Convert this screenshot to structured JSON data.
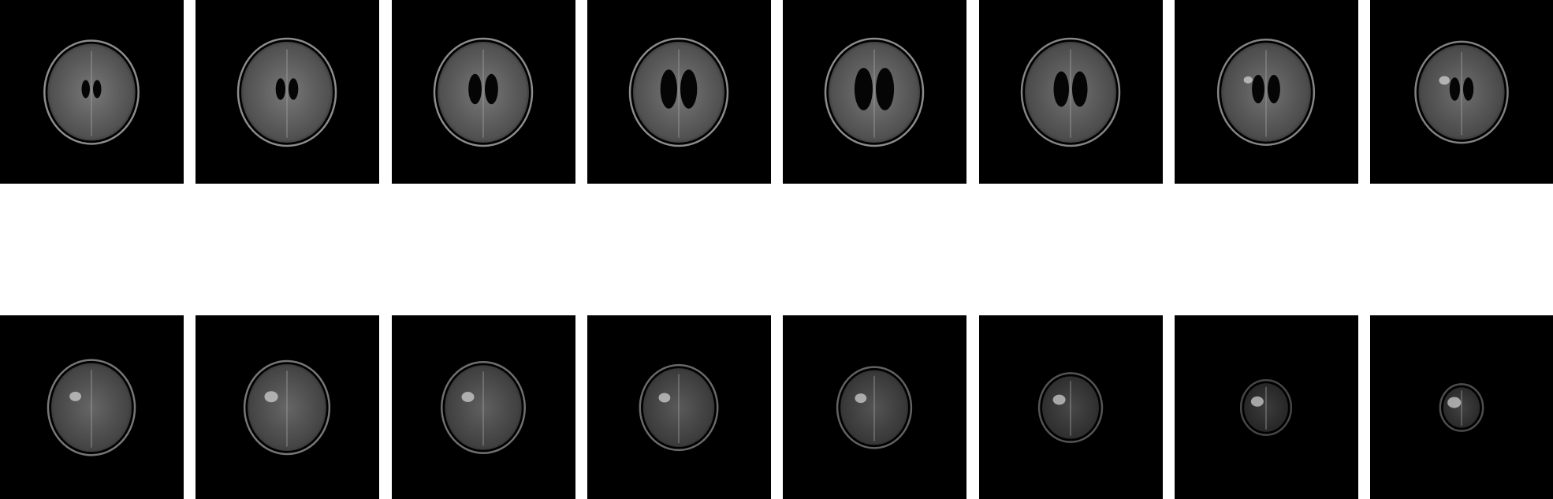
{
  "slices": [
    {
      "scale": 0.96,
      "vent": 0.25,
      "lesion": 0.0,
      "dim": 1.0
    },
    {
      "scale": 1.0,
      "vent": 0.35,
      "lesion": 0.0,
      "dim": 1.0
    },
    {
      "scale": 1.0,
      "vent": 0.6,
      "lesion": 0.0,
      "dim": 1.0
    },
    {
      "scale": 1.0,
      "vent": 0.85,
      "lesion": 0.0,
      "dim": 1.0
    },
    {
      "scale": 1.0,
      "vent": 0.95,
      "lesion": 0.0,
      "dim": 1.0
    },
    {
      "scale": 1.0,
      "vent": 0.75,
      "lesion": 0.0,
      "dim": 0.95
    },
    {
      "scale": 0.98,
      "vent": 0.55,
      "lesion": 0.1,
      "dim": 0.95
    },
    {
      "scale": 0.94,
      "vent": 0.4,
      "lesion": 0.3,
      "dim": 0.92
    },
    {
      "scale": 0.88,
      "vent": 0.0,
      "lesion": 0.4,
      "dim": 0.85
    },
    {
      "scale": 0.86,
      "vent": 0.0,
      "lesion": 0.6,
      "dim": 0.85
    },
    {
      "scale": 0.84,
      "vent": 0.0,
      "lesion": 0.5,
      "dim": 0.8
    },
    {
      "scale": 0.78,
      "vent": 0.0,
      "lesion": 0.4,
      "dim": 0.75
    },
    {
      "scale": 0.74,
      "vent": 0.0,
      "lesion": 0.4,
      "dim": 0.7
    },
    {
      "scale": 0.62,
      "vent": 0.0,
      "lesion": 0.5,
      "dim": 0.6
    },
    {
      "scale": 0.48,
      "vent": 0.0,
      "lesion": 0.5,
      "dim": 0.5
    },
    {
      "scale": 0.4,
      "vent": 0.0,
      "lesion": 0.6,
      "dim": 0.55
    }
  ]
}
